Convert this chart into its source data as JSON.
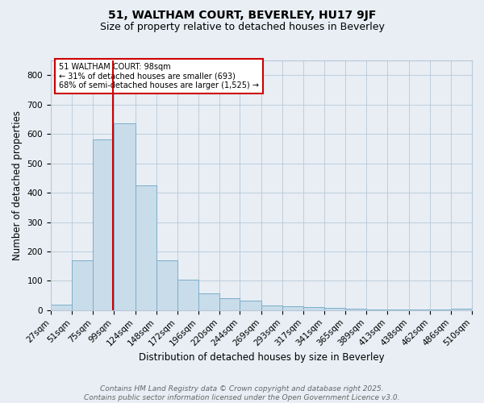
{
  "title1": "51, WALTHAM COURT, BEVERLEY, HU17 9JF",
  "title2": "Size of property relative to detached houses in Beverley",
  "xlabel": "Distribution of detached houses by size in Beverley",
  "ylabel": "Number of detached properties",
  "bar_color": "#c9dcea",
  "bar_edge_color": "#7aaec8",
  "vline_x": 98,
  "vline_color": "#cc0000",
  "annotation_text": "51 WALTHAM COURT: 98sqm\n← 31% of detached houses are smaller (693)\n68% of semi-detached houses are larger (1,525) →",
  "annotation_box_color": "#ffffff",
  "annotation_box_edge": "#cc0000",
  "bins": [
    27,
    51,
    75,
    99,
    124,
    148,
    172,
    196,
    220,
    244,
    269,
    293,
    317,
    341,
    365,
    389,
    413,
    438,
    462,
    486,
    510
  ],
  "values": [
    20,
    170,
    580,
    635,
    425,
    170,
    105,
    57,
    42,
    33,
    15,
    12,
    10,
    8,
    5,
    3,
    2,
    1,
    1,
    5
  ],
  "ylim": [
    0,
    850
  ],
  "yticks": [
    0,
    100,
    200,
    300,
    400,
    500,
    600,
    700,
    800
  ],
  "footer_text": "Contains HM Land Registry data © Crown copyright and database right 2025.\nContains public sector information licensed under the Open Government Licence v3.0.",
  "background_color": "#e8eef4",
  "plot_bg_color": "#e8eef4",
  "grid_color": "#b8c8d8",
  "title_fontsize": 10,
  "subtitle_fontsize": 9,
  "axis_label_fontsize": 8.5,
  "tick_fontsize": 7.5,
  "footer_fontsize": 6.5
}
